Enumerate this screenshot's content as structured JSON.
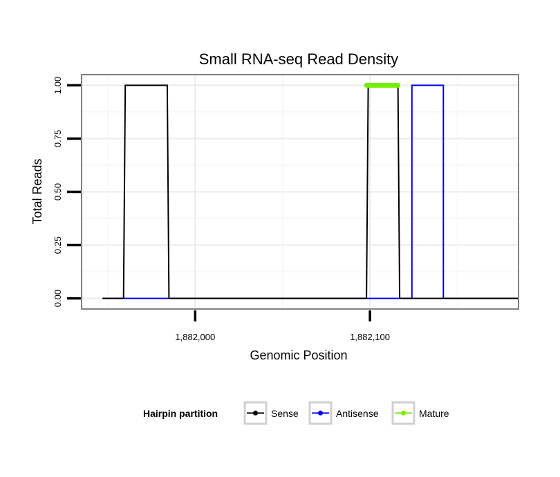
{
  "chart_data": {
    "type": "line",
    "title": "Small RNA-seq Read Density",
    "xlabel": "Genomic Position",
    "ylabel": "Total Reads",
    "xlim": [
      1881935,
      1882185
    ],
    "ylim": [
      -0.05,
      1.05
    ],
    "x_ticks": [
      {
        "value": 1882000,
        "label": "1,882,000"
      },
      {
        "value": 1882100,
        "label": "1,882,100"
      }
    ],
    "y_ticks": [
      {
        "value": 0.0,
        "label": "0.00"
      },
      {
        "value": 0.25,
        "label": "0.25"
      },
      {
        "value": 0.5,
        "label": "0.50"
      },
      {
        "value": 0.75,
        "label": "0.75"
      },
      {
        "value": 1.0,
        "label": "1.00"
      }
    ],
    "grid": true,
    "legend": {
      "title": "Hairpin partition",
      "placement": "bottom",
      "entries": [
        "Sense",
        "Antisense",
        "Mature"
      ]
    },
    "series": [
      {
        "name": "Antisense",
        "color": "#0000ff",
        "x": [
          1881947,
          1881960,
          1881960,
          1881984,
          1881984,
          1882124,
          1882124,
          1882142,
          1882142,
          1882185
        ],
        "y": [
          0,
          0,
          0,
          0,
          0,
          0,
          1,
          1,
          0,
          0
        ]
      },
      {
        "name": "Sense",
        "color": "#000000",
        "x": [
          1881947,
          1881959,
          1881960,
          1881984,
          1881985,
          1882098,
          1882099,
          1882116,
          1882117,
          1882124,
          1882142,
          1882185
        ],
        "y": [
          0,
          0,
          1,
          1,
          0,
          0,
          1,
          1,
          0,
          0,
          0,
          0
        ]
      },
      {
        "name": "Mature",
        "color": "#76ee00",
        "x": [
          1882098,
          1882116
        ],
        "y": [
          1,
          1
        ]
      }
    ]
  }
}
